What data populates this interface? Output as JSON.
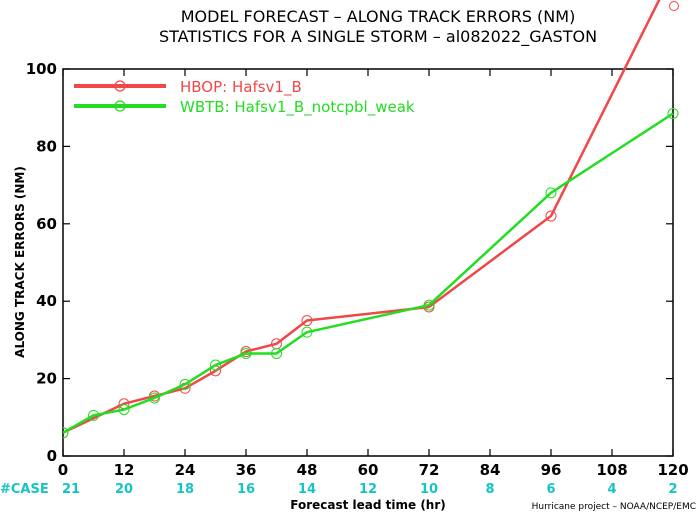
{
  "chart_data": {
    "type": "line",
    "title": "MODEL FORECAST – ALONG TRACK ERRORS (NM)",
    "subtitle": "STATISTICS FOR A SINGLE STORM – al082022_GASTON",
    "xlabel": "Forecast lead time (hr)",
    "ylabel": "ALONG TRACK ERRORS (NM)",
    "xlim": [
      0,
      120
    ],
    "ylim": [
      0,
      100
    ],
    "xticks": [
      0,
      12,
      24,
      36,
      48,
      60,
      72,
      84,
      96,
      108,
      120
    ],
    "yticks": [
      0,
      20,
      40,
      60,
      80,
      100
    ],
    "grid": false,
    "legend_position": "top-left",
    "case_label": "#CASE",
    "case_counts": [
      21,
      20,
      18,
      16,
      14,
      12,
      10,
      8,
      6,
      4,
      2
    ],
    "credit": "Hurricane project – NOAA/NCEP/EMC",
    "series": [
      {
        "name": "HBOP:  Hafsv1_B",
        "color": "#f04848",
        "x": [
          0,
          12,
          18,
          24,
          30,
          36,
          42,
          48,
          72,
          96,
          120
        ],
        "y": [
          6,
          13.5,
          15.5,
          17.5,
          22,
          27,
          29,
          35,
          38.5,
          62,
          125
        ]
      },
      {
        "name": "WBTB:  Hafsv1_B_notcpbl_weak",
        "color": "#22dd22",
        "x": [
          0,
          6,
          12,
          18,
          24,
          30,
          36,
          42,
          48,
          72,
          96,
          120
        ],
        "y": [
          6,
          10.5,
          12,
          15,
          18.5,
          23.5,
          26.5,
          26.5,
          32,
          39,
          68,
          88.5
        ]
      }
    ]
  }
}
